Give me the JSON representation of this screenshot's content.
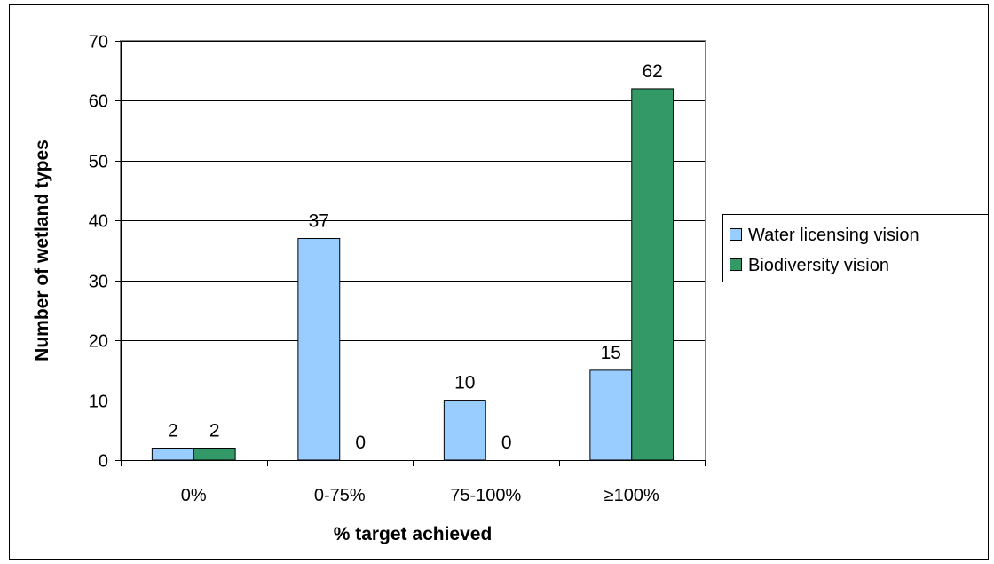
{
  "chart_data": {
    "type": "bar",
    "title": "",
    "xlabel": "% target achieved",
    "ylabel": "Number of wetland types",
    "categories": [
      "0%",
      "0-75%",
      "75-100%",
      "≥100%"
    ],
    "series": [
      {
        "name": "Water licensing vision",
        "values": [
          2,
          37,
          10,
          15
        ],
        "color": "#99CCFF"
      },
      {
        "name": "Biodiversity vision",
        "values": [
          2,
          0,
          0,
          62
        ],
        "color": "#339966"
      }
    ],
    "ylim": [
      0,
      70
    ],
    "yticks": [
      0,
      10,
      20,
      30,
      40,
      50,
      60,
      70
    ],
    "grid": true,
    "legend_position": "right",
    "data_labels": true
  }
}
